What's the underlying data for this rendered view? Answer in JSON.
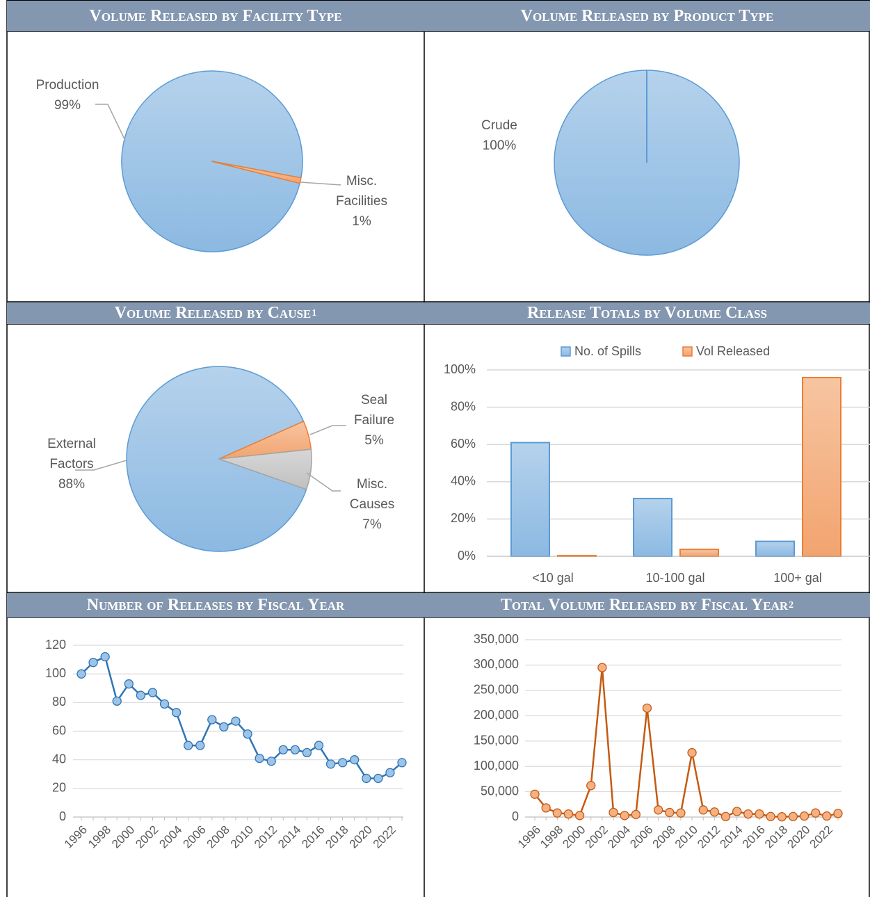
{
  "chart_data": [
    {
      "type": "pie",
      "title": "Volume Released by Facility Type",
      "categories": [
        "Production",
        "Misc. Facilities"
      ],
      "values": [
        99,
        1
      ],
      "value_labels": [
        "99%",
        "1%"
      ],
      "colors": [
        "#5b9bd5",
        "#ed7d31"
      ]
    },
    {
      "type": "pie",
      "title": "Volume Released by Product Type",
      "categories": [
        "Crude"
      ],
      "values": [
        100
      ],
      "value_labels": [
        "100%"
      ],
      "colors": [
        "#5b9bd5"
      ]
    },
    {
      "type": "pie",
      "title": "Volume Released by Cause",
      "title_note": "1",
      "categories": [
        "External Factors",
        "Seal Failure",
        "Misc. Causes"
      ],
      "values": [
        88,
        5,
        7
      ],
      "value_labels": [
        "88%",
        "5%",
        "7%"
      ],
      "colors": [
        "#5b9bd5",
        "#ed7d31",
        "#a5a5a5"
      ]
    },
    {
      "type": "bar",
      "title": "Release Totals by Volume Class",
      "categories": [
        "<10 gal",
        "10-100 gal",
        "100+ gal"
      ],
      "series": [
        {
          "name": "No. of Spills",
          "color": "#5b9bd5",
          "values": [
            61,
            31,
            8
          ]
        },
        {
          "name": "Vol Released",
          "color": "#ed7d31",
          "values": [
            0.4,
            3.7,
            95.9
          ]
        }
      ],
      "ylim": [
        0,
        100
      ],
      "yticks": [
        {
          "value": 0,
          "label": "0%"
        },
        {
          "value": 20,
          "label": "20%"
        },
        {
          "value": 40,
          "label": "40%"
        },
        {
          "value": 60,
          "label": "60%"
        },
        {
          "value": 80,
          "label": "80%"
        },
        {
          "value": 100,
          "label": "100%"
        }
      ],
      "grid": true,
      "legend": "top"
    },
    {
      "type": "line",
      "title": "Number of Releases by Fiscal Year",
      "categories": [
        "1996",
        null,
        "1998",
        null,
        "2000",
        null,
        "2002",
        null,
        "2004",
        null,
        "2006",
        null,
        "2008",
        null,
        "2010",
        null,
        "2012",
        null,
        "2014",
        null,
        "2016",
        null,
        "2018",
        null,
        "2020",
        null,
        "2022",
        null
      ],
      "values": [
        100,
        108,
        112,
        81,
        93,
        85,
        87,
        79,
        73,
        50,
        50,
        68,
        63,
        67,
        58,
        41,
        39,
        47,
        47,
        45,
        50,
        37,
        38,
        40,
        27,
        27,
        31,
        38
      ],
      "color": "#2e75b6",
      "marker_color": "#9dc3e6",
      "ylim": [
        0,
        120
      ],
      "yticks": [
        0,
        20,
        40,
        60,
        80,
        100,
        120
      ],
      "grid": true
    },
    {
      "type": "line",
      "title": "Total Volume Released by Fiscal Year",
      "title_note": "2",
      "categories": [
        "1996",
        null,
        "1998",
        null,
        "2000",
        null,
        "2002",
        null,
        "2004",
        null,
        "2006",
        null,
        "2008",
        null,
        "2010",
        null,
        "2012",
        null,
        "2014",
        null,
        "2016",
        null,
        "2018",
        null,
        "2020",
        null,
        "2022",
        null
      ],
      "values": [
        45000,
        18000,
        8000,
        6000,
        3000,
        62000,
        295000,
        9000,
        3000,
        5000,
        215000,
        14000,
        9000,
        8000,
        127000,
        14000,
        10000,
        1000,
        11000,
        6000,
        6000,
        1000,
        500,
        1000,
        2000,
        8000,
        2000,
        7000
      ],
      "color": "#c55a11",
      "marker_color": "#f4b183",
      "ylim": [
        0,
        350000
      ],
      "yticks": [
        0,
        {
          "value": 50000,
          "label": "50,000"
        },
        {
          "value": 100000,
          "label": "100,000"
        },
        {
          "value": 150000,
          "label": "150,000"
        },
        {
          "value": 200000,
          "label": "200,000"
        },
        {
          "value": 250000,
          "label": "250,000"
        },
        {
          "value": 300000,
          "label": "300,000"
        },
        {
          "value": 350000,
          "label": "350,000"
        }
      ],
      "grid": true
    }
  ]
}
